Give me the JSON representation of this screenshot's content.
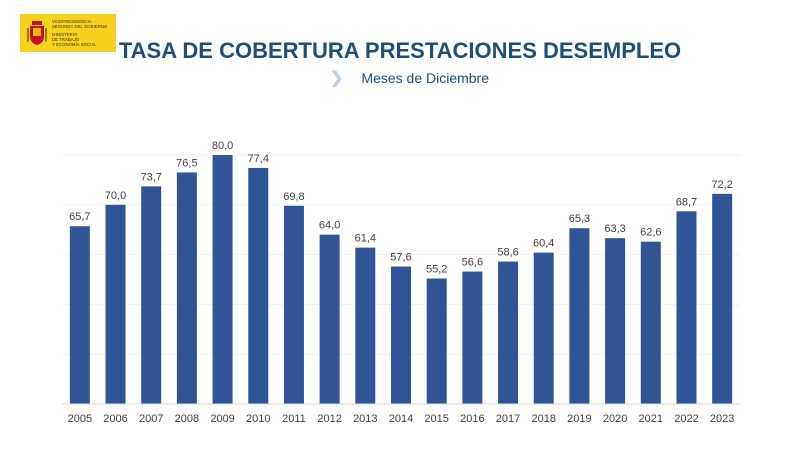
{
  "logo": {
    "line1": "VICEPRESIDENCIA",
    "line2": "SEGUNDA DEL GOBIERNO",
    "line3": "MINISTERIO",
    "line4": "DE TRABAJO",
    "line5": "Y ECONOMÍA SOCIAL"
  },
  "title": "TASA DE COBERTURA PRESTACIONES DESEMPLEO",
  "subtitle": "Meses de Diciembre",
  "colors": {
    "bar": "#2f5597",
    "title": "#1f4e79",
    "highlight": "#f8e08a",
    "logo_bg": "#f6d21f"
  },
  "chart_data": {
    "type": "bar",
    "title": "TASA DE COBERTURA PRESTACIONES DESEMPLEO",
    "subtitle": "Meses de Diciembre",
    "categories": [
      "2005",
      "2006",
      "2007",
      "2008",
      "2009",
      "2010",
      "2011",
      "2012",
      "2013",
      "2014",
      "2015",
      "2016",
      "2017",
      "2018",
      "2019",
      "2020",
      "2021",
      "2022",
      "2023"
    ],
    "values": [
      65.7,
      70.0,
      73.7,
      76.5,
      80.0,
      77.4,
      69.8,
      64.0,
      61.4,
      57.6,
      55.2,
      56.6,
      58.6,
      60.4,
      65.3,
      63.3,
      62.6,
      68.7,
      72.2
    ],
    "labels": [
      "65,7",
      "70,0",
      "73,7",
      "76,5",
      "80,0",
      "77,4",
      "69,8",
      "64,0",
      "61,4",
      "57,6",
      "55,2",
      "56,6",
      "58,6",
      "60,4",
      "65,3",
      "63,3",
      "62,6",
      "68,7",
      "72,2"
    ],
    "ylim": [
      30,
      80
    ],
    "grid": true
  }
}
